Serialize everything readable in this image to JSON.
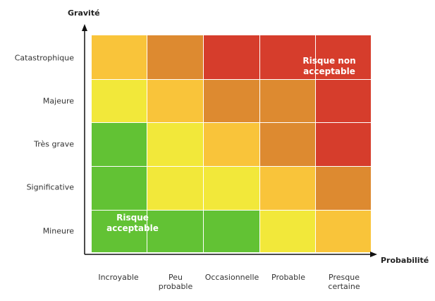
{
  "y_axis_title": "Gravité",
  "x_axis_title": "Probabilité",
  "rows": [
    "Catastrophique",
    "Majeure",
    "Très grave",
    "Significative",
    "Mineure"
  ],
  "columns": [
    "Incroyable",
    "Peu\nprobable",
    "Occasionnelle",
    "Probable",
    "Presque\ncertaine"
  ],
  "levels": {
    "1": "#62c234",
    "2": "#f2e83a",
    "3": "#f9c43a",
    "4": "#dd8a30",
    "5": "#d63d2c"
  },
  "grid_levels": [
    [
      3,
      4,
      5,
      5,
      5
    ],
    [
      2,
      3,
      4,
      4,
      5
    ],
    [
      1,
      2,
      3,
      4,
      5
    ],
    [
      1,
      2,
      2,
      3,
      4
    ],
    [
      1,
      1,
      1,
      2,
      3
    ]
  ],
  "zones": {
    "unacceptable": "Risque non\nacceptable",
    "acceptable": "Risque\nacceptable"
  }
}
